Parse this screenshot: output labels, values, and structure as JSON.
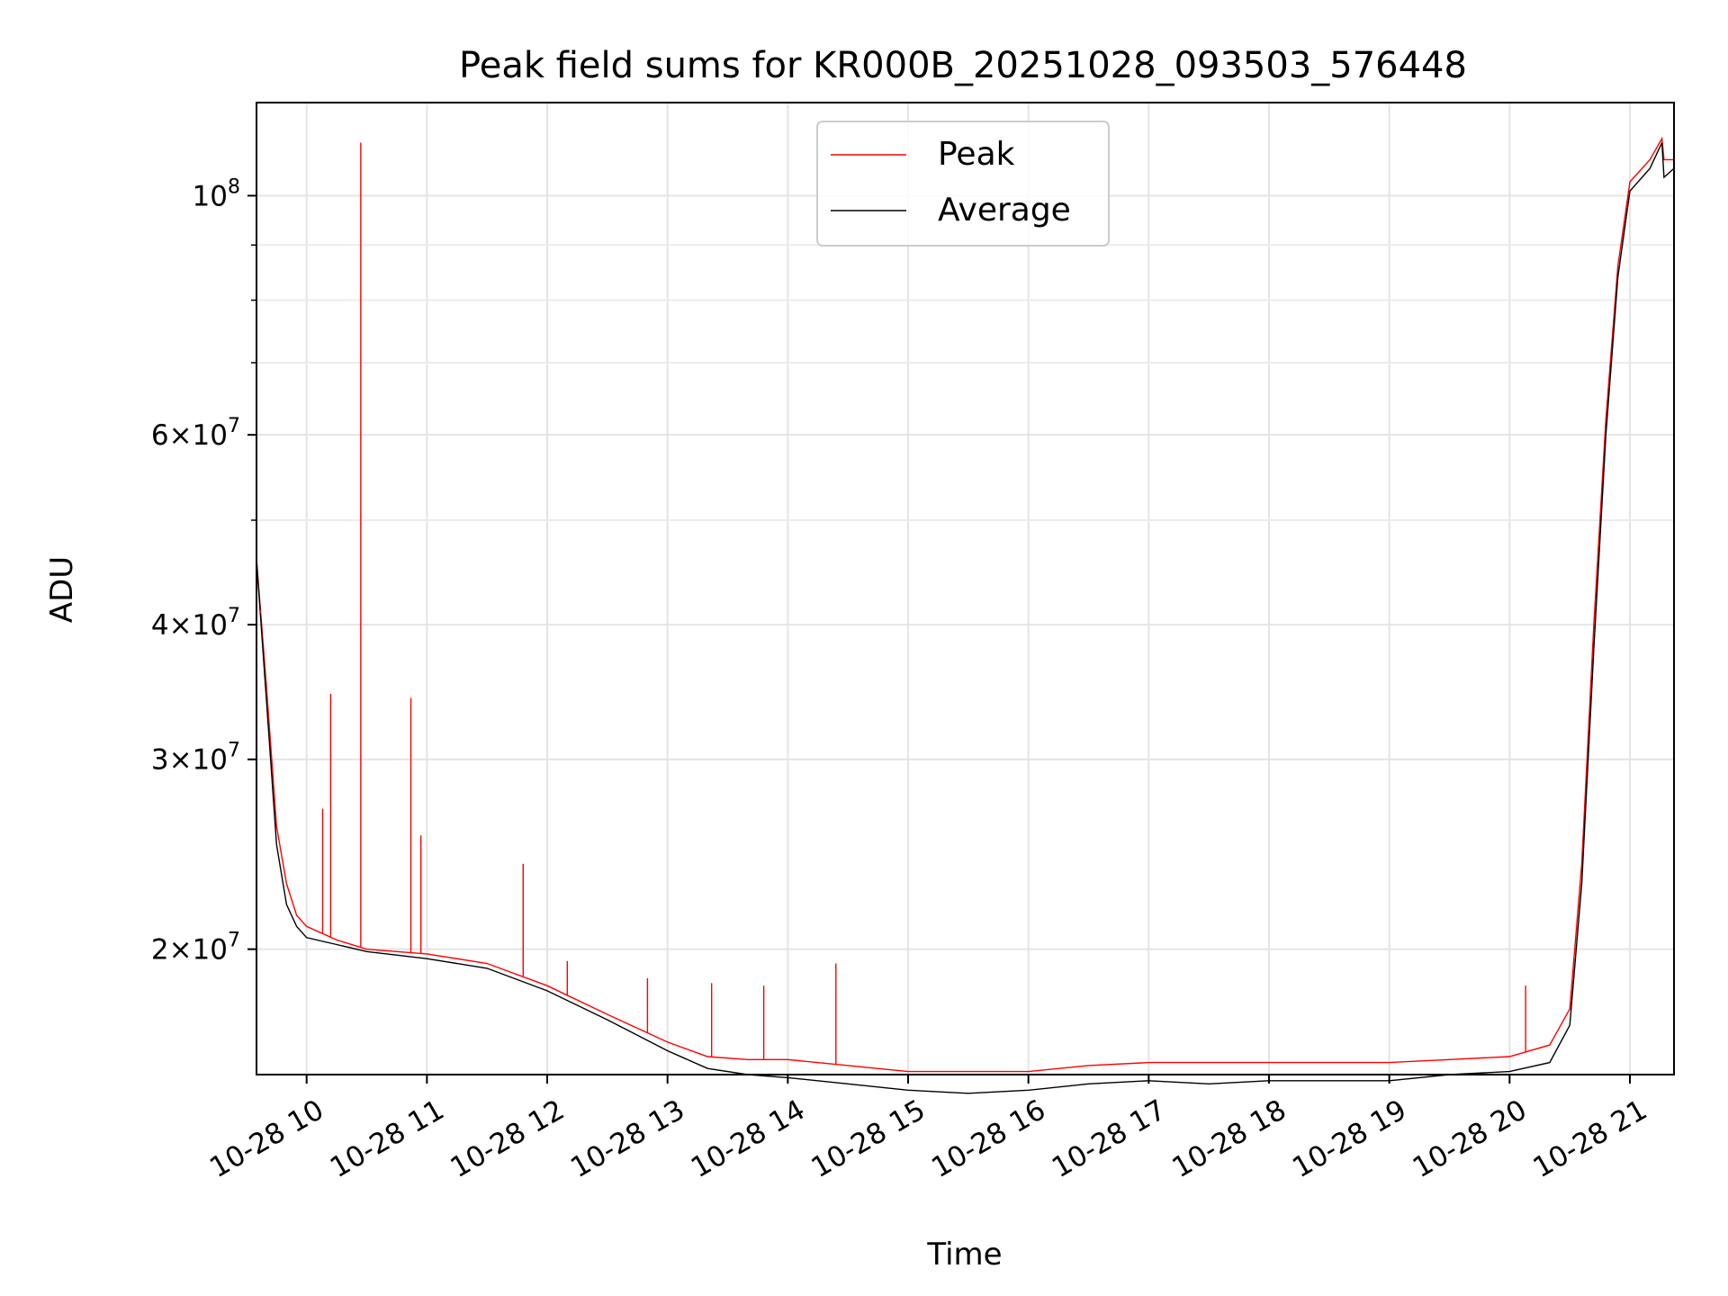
{
  "chart_data": {
    "type": "line",
    "title": "Peak field sums for KR000B_20251028_093503_576448",
    "xlabel": "Time",
    "ylabel": "ADU",
    "y_scale": "log",
    "ylim": [
      15300000,
      122000000
    ],
    "xlim": [
      "2025-10-28 09:35",
      "2025-10-28 21:22"
    ],
    "grid": true,
    "legend": {
      "placement": "upper center",
      "entries": [
        "Peak",
        "Average"
      ]
    },
    "colors": {
      "Peak": "#ff0000",
      "Average": "#000000"
    },
    "x_ticks": [
      "10-28 10",
      "10-28 11",
      "10-28 12",
      "10-28 13",
      "10-28 14",
      "10-28 15",
      "10-28 16",
      "10-28 17",
      "10-28 18",
      "10-28 19",
      "10-28 20",
      "10-28 21"
    ],
    "y_ticks": [
      {
        "value": 20000000,
        "mantissa": "2",
        "exp": "7"
      },
      {
        "value": 30000000,
        "mantissa": "3",
        "exp": "7"
      },
      {
        "value": 40000000,
        "mantissa": "4",
        "exp": "7"
      },
      {
        "value": 60000000,
        "mantissa": "6",
        "exp": "7"
      },
      {
        "value": 100000000,
        "mantissa": "",
        "exp": "8"
      }
    ],
    "x": [
      "2025-10-28 09:35",
      "2025-10-28 09:40",
      "2025-10-28 09:45",
      "2025-10-28 09:50",
      "2025-10-28 09:55",
      "2025-10-28 10:00",
      "2025-10-28 10:15",
      "2025-10-28 10:30",
      "2025-10-28 11:00",
      "2025-10-28 11:30",
      "2025-10-28 12:00",
      "2025-10-28 12:30",
      "2025-10-28 13:00",
      "2025-10-28 13:20",
      "2025-10-28 13:40",
      "2025-10-28 14:00",
      "2025-10-28 14:30",
      "2025-10-28 15:00",
      "2025-10-28 15:30",
      "2025-10-28 16:00",
      "2025-10-28 16:30",
      "2025-10-28 17:00",
      "2025-10-28 17:30",
      "2025-10-28 18:00",
      "2025-10-28 18:30",
      "2025-10-28 19:00",
      "2025-10-28 19:30",
      "2025-10-28 20:00",
      "2025-10-28 20:20",
      "2025-10-28 20:30",
      "2025-10-28 20:36",
      "2025-10-28 20:42",
      "2025-10-28 20:48",
      "2025-10-28 20:54",
      "2025-10-28 21:00",
      "2025-10-28 21:10",
      "2025-10-28 21:16",
      "2025-10-28 21:17",
      "2025-10-28 21:22"
    ],
    "series": [
      {
        "name": "Peak",
        "values": [
          46000000,
          35000000,
          26000000,
          23000000,
          21500000,
          21000000,
          20400000,
          20000000,
          19800000,
          19400000,
          18500000,
          17400000,
          16400000,
          15900000,
          15800000,
          15800000,
          15600000,
          15400000,
          15400000,
          15400000,
          15600000,
          15700000,
          15700000,
          15700000,
          15700000,
          15700000,
          15800000,
          15900000,
          16300000,
          17600000,
          24000000,
          40000000,
          62000000,
          86000000,
          103000000,
          108000000,
          113000000,
          108000000,
          108000000
        ],
        "spikes": [
          {
            "x": "2025-10-28 09:37",
            "value": 41000000
          },
          {
            "x": "2025-10-28 10:08",
            "value": 27000000
          },
          {
            "x": "2025-10-28 10:12",
            "value": 34500000
          },
          {
            "x": "2025-10-28 10:27",
            "value": 112000000
          },
          {
            "x": "2025-10-28 10:52",
            "value": 34200000
          },
          {
            "x": "2025-10-28 10:57",
            "value": 25500000
          },
          {
            "x": "2025-10-28 11:48",
            "value": 24000000
          },
          {
            "x": "2025-10-28 12:10",
            "value": 19500000
          },
          {
            "x": "2025-10-28 12:50",
            "value": 18800000
          },
          {
            "x": "2025-10-28 13:22",
            "value": 18600000
          },
          {
            "x": "2025-10-28 13:48",
            "value": 18500000
          },
          {
            "x": "2025-10-28 14:24",
            "value": 19400000
          },
          {
            "x": "2025-10-28 20:08",
            "value": 18500000
          }
        ]
      },
      {
        "name": "Average",
        "values": [
          46000000,
          34000000,
          25000000,
          22000000,
          21000000,
          20500000,
          20200000,
          19900000,
          19600000,
          19200000,
          18300000,
          17200000,
          16100000,
          15500000,
          15300000,
          15200000,
          15000000,
          14800000,
          14700000,
          14800000,
          15000000,
          15100000,
          15000000,
          15100000,
          15100000,
          15100000,
          15300000,
          15400000,
          15700000,
          17000000,
          23000000,
          38000000,
          60000000,
          84000000,
          101000000,
          106000000,
          112000000,
          104000000,
          106000000
        ]
      }
    ]
  }
}
